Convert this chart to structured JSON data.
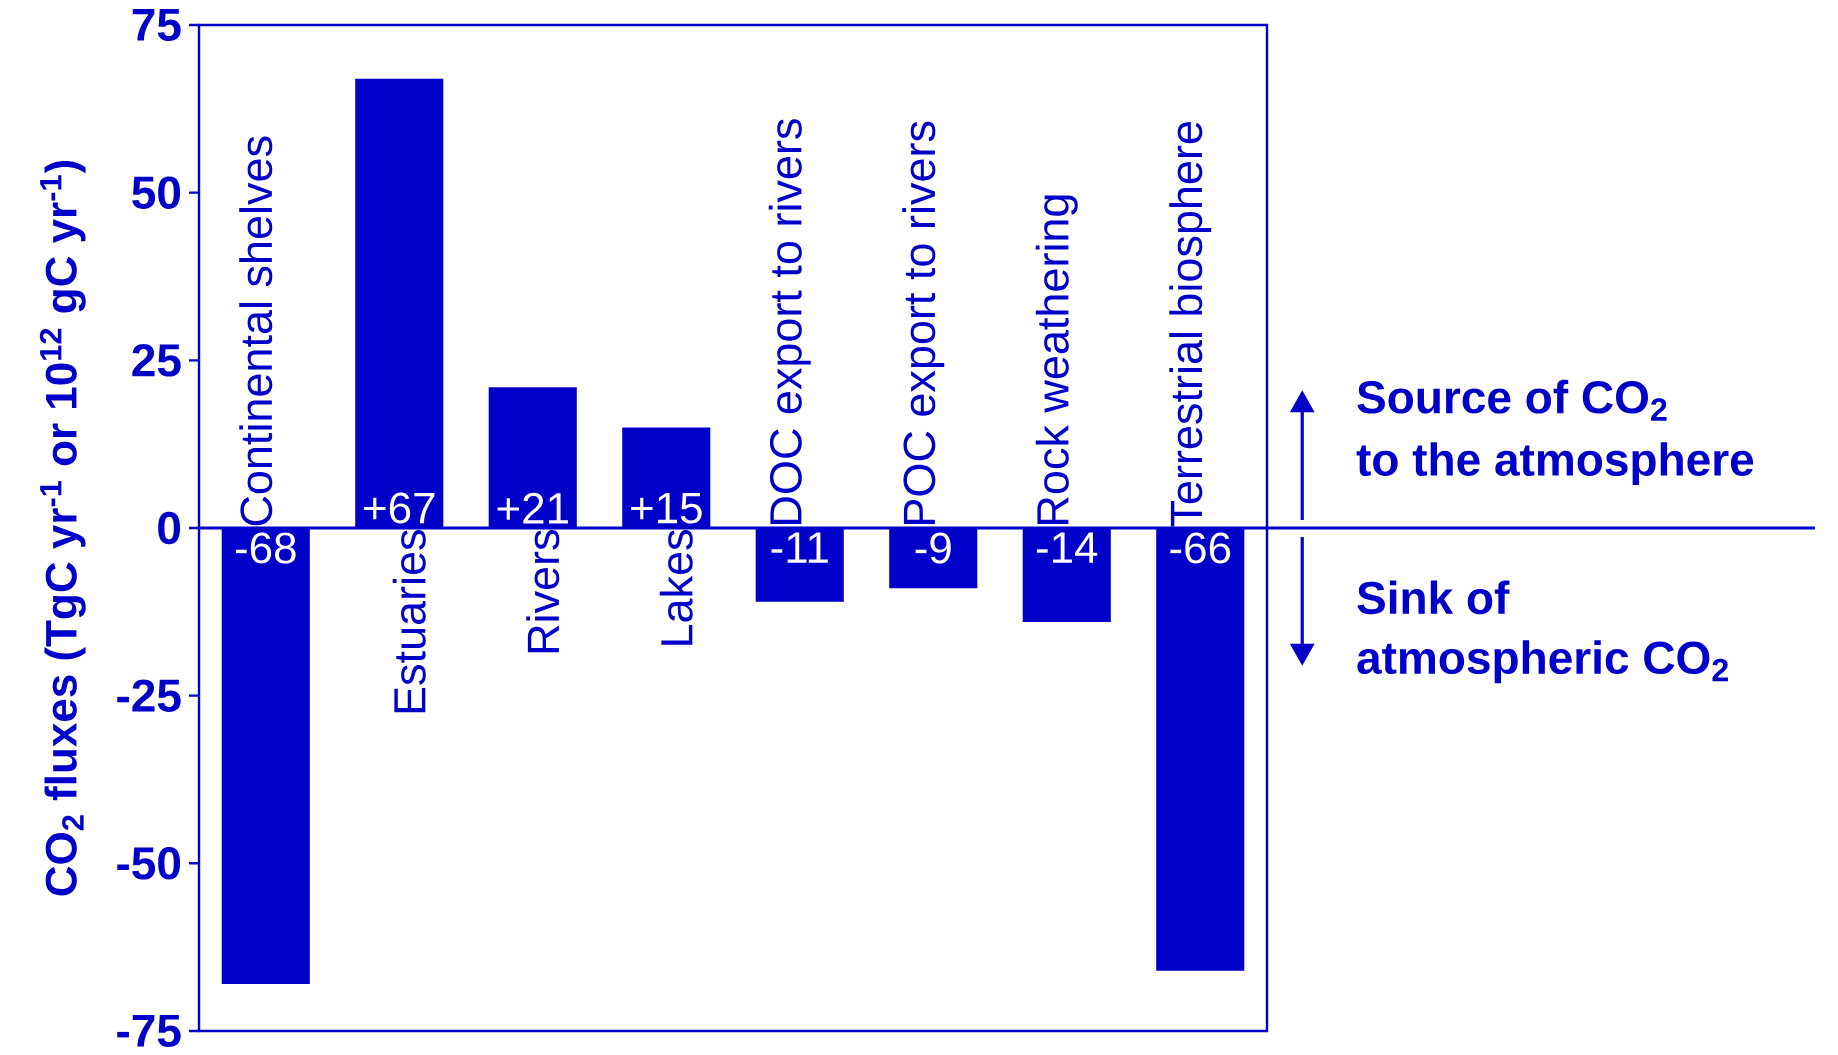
{
  "chart_data": {
    "type": "bar",
    "ylabel": "CO$_{2}$ fluxes (TgC yr$^{-1}$ or 10$^{12}$ gC yr$^{-1}$)",
    "categories": [
      "Continental shelves",
      "Estuaries",
      "Rivers",
      "Lakes",
      "DOC export to rivers",
      "POC export to rivers",
      "Rock weathering",
      "Terrestrial biosphere"
    ],
    "values": [
      -68,
      67,
      21,
      15,
      -11,
      -9,
      -14,
      -66
    ],
    "value_labels": [
      "-68",
      "+67",
      "+21",
      "+15",
      "-11",
      "-9",
      "-14",
      "-66"
    ],
    "color": "#0000c8",
    "ylim": [
      -75,
      75
    ],
    "yticks": [
      -75,
      -50,
      -25,
      0,
      25,
      50,
      75
    ],
    "annotations": [
      "Source of CO$_{2}$",
      "to the atmosphere",
      "Sink of",
      "atmospheric CO$_{2}$"
    ]
  }
}
